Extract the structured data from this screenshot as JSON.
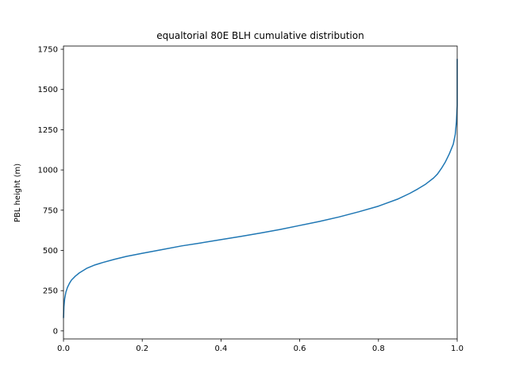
{
  "chart_data": {
    "type": "line",
    "title": "equaltorial 80E BLH cumulative distribution",
    "xlabel": "",
    "ylabel": "PBL height (m)",
    "xlim": [
      0.0,
      1.0
    ],
    "ylim": [
      -50,
      1770
    ],
    "xticks": [
      0.0,
      0.2,
      0.4,
      0.6,
      0.8,
      1.0
    ],
    "xtick_labels": [
      "0.0",
      "0.2",
      "0.4",
      "0.6",
      "0.8",
      "1.0"
    ],
    "yticks": [
      0,
      250,
      500,
      750,
      1000,
      1250,
      1500,
      1750
    ],
    "ytick_labels": [
      "0",
      "250",
      "500",
      "750",
      "1000",
      "1250",
      "1500",
      "1750"
    ],
    "grid": false,
    "line_color": "#1f77b4",
    "series": [
      {
        "x": [
          0.0,
          0.001,
          0.003,
          0.006,
          0.01,
          0.015,
          0.02,
          0.03,
          0.04,
          0.06,
          0.08,
          0.1,
          0.13,
          0.16,
          0.2,
          0.25,
          0.3,
          0.35,
          0.4,
          0.45,
          0.5,
          0.55,
          0.6,
          0.65,
          0.7,
          0.75,
          0.8,
          0.85,
          0.88,
          0.9,
          0.92,
          0.94,
          0.95,
          0.96,
          0.97,
          0.98,
          0.99,
          0.995,
          0.998,
          1.0,
          1.0,
          1.0
        ],
        "y": [
          80,
          150,
          200,
          240,
          270,
          295,
          315,
          340,
          360,
          390,
          410,
          425,
          445,
          463,
          482,
          505,
          528,
          547,
          567,
          587,
          608,
          630,
          655,
          680,
          708,
          740,
          775,
          820,
          855,
          882,
          912,
          950,
          975,
          1010,
          1050,
          1100,
          1160,
          1220,
          1300,
          1400,
          1550,
          1690
        ]
      }
    ]
  }
}
